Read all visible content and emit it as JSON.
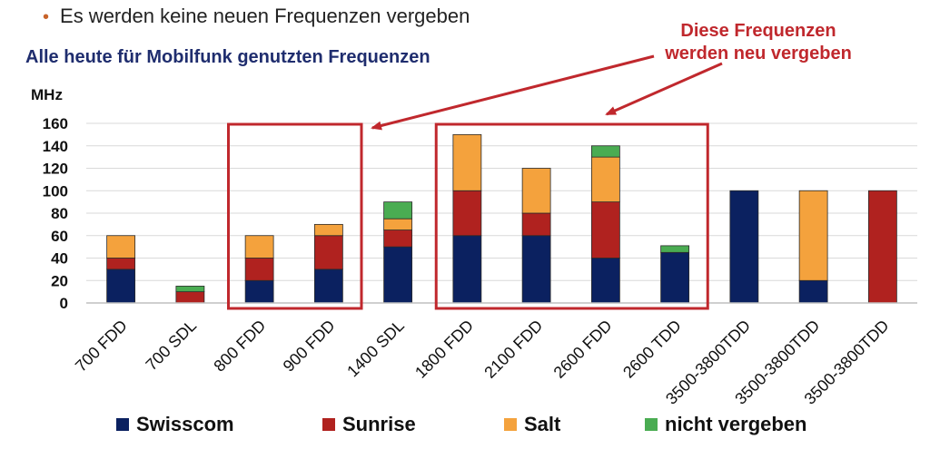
{
  "header": {
    "bullet_text": "Es werden keine neuen Frequenzen vergeben",
    "subtitle": "Alle heute für Mobilfunk genutzten Frequenzen",
    "annotation_line1": "Diese Frequenzen",
    "annotation_line2": "werden neu vergeben"
  },
  "colors": {
    "Swisscom": "#0b2160",
    "Sunrise": "#b0221f",
    "Salt": "#f4a23d",
    "nicht vergeben": "#4aac52",
    "highlight_box": "#c0282d",
    "subtitle": "#1f2d6e"
  },
  "chart_data": {
    "type": "bar",
    "stacked": true,
    "ylabel": "MHz",
    "ylim": [
      0,
      160
    ],
    "yticks": [
      0,
      20,
      40,
      60,
      80,
      100,
      120,
      140,
      160
    ],
    "categories": [
      "700 FDD",
      "700 SDL",
      "800 FDD",
      "900 FDD",
      "1400 SDL",
      "1800 FDD",
      "2100 FDD",
      "2600 FDD",
      "2600 TDD",
      "3500-3800TDD",
      "3500-3800TDD",
      "3500-3800TDD"
    ],
    "series": [
      {
        "name": "Swisscom",
        "values": [
          30,
          0,
          20,
          30,
          50,
          60,
          60,
          40,
          45,
          100,
          20,
          0
        ]
      },
      {
        "name": "Sunrise",
        "values": [
          10,
          10,
          20,
          30,
          15,
          40,
          20,
          50,
          0,
          0,
          0,
          100
        ]
      },
      {
        "name": "Salt",
        "values": [
          20,
          0,
          20,
          10,
          10,
          50,
          40,
          40,
          0,
          0,
          80,
          0
        ]
      },
      {
        "name": "nicht vergeben",
        "values": [
          0,
          5,
          0,
          0,
          15,
          0,
          0,
          10,
          6,
          0,
          0,
          0
        ]
      }
    ],
    "legend_position": "bottom",
    "highlight_groups": [
      [
        "800 FDD",
        "900 FDD"
      ],
      [
        "1800 FDD",
        "2100 FDD",
        "2600 FDD",
        "2600 TDD"
      ]
    ]
  }
}
